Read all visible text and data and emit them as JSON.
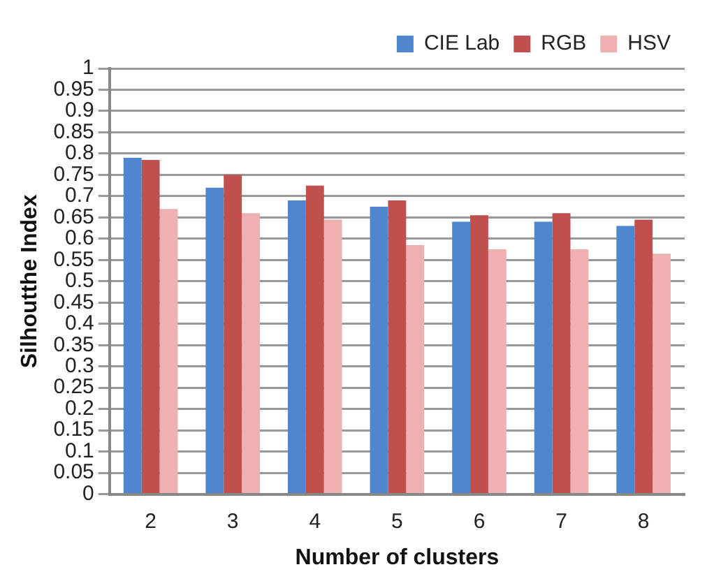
{
  "chart_data": {
    "type": "bar",
    "xlabel": "Number of clusters",
    "ylabel": "Silhoutthe Index",
    "categories": [
      "2",
      "3",
      "4",
      "5",
      "6",
      "7",
      "8"
    ],
    "series": [
      {
        "name": "CIE Lab",
        "color": "#4f86d0",
        "values": [
          0.79,
          0.72,
          0.69,
          0.675,
          0.64,
          0.64,
          0.63
        ]
      },
      {
        "name": "RGB",
        "color": "#c0504d",
        "values": [
          0.785,
          0.75,
          0.725,
          0.69,
          0.655,
          0.66,
          0.645
        ]
      },
      {
        "name": "HSV",
        "color": "#eeb0b0",
        "values": [
          0.67,
          0.66,
          0.645,
          0.585,
          0.575,
          0.575,
          0.565
        ]
      }
    ],
    "ylim": [
      0,
      1
    ],
    "yticks": [
      0,
      0.05,
      0.1,
      0.15,
      0.2,
      0.25,
      0.3,
      0.35,
      0.4,
      0.45,
      0.5,
      0.55,
      0.6,
      0.65,
      0.7,
      0.75,
      0.8,
      0.85,
      0.9,
      0.95,
      1
    ],
    "grid": "y",
    "legend": "top right"
  }
}
